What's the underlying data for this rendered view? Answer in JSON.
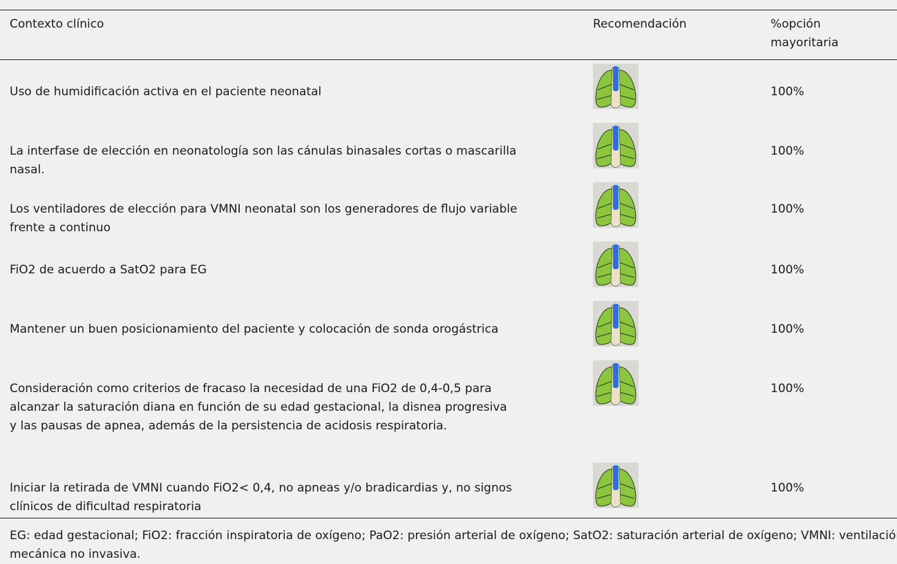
{
  "table": {
    "header": [
      "Contexto clínico",
      "Recomendación",
      "%opción mayoritaria"
    ],
    "rows": [
      [
        "Uso de humidificación activa en el paciente neonatal",
        "100%"
      ],
      [
        "La interfase de elección en neonatología son las cánulas binasales cortas o mascarilla nasal.",
        "100%"
      ],
      [
        "Los ventiladores de elección para VMNI neonatal son los generadores de flujo variable frente a continuo",
        "100%"
      ],
      [
        "FiO2 de acuerdo a SatO2 para EG",
        "100%"
      ],
      [
        "Mantener un buen posicionamiento del paciente y colocación de sonda orogástrica",
        "100%"
      ],
      [
        "Consideración como criterios de fracaso la necesidad de una FiO2 de 0,4-0,5 para alcanzar la saturación diana en función de su edad gestacional, la disnea progresiva y las pausas de apnea, además de la persistencia de acidosis respiratoria.",
        "100%"
      ],
      [
        "Iniciar la retirada de VMNI cuando FiO2< 0,4, no apneas y/o bradicardias y, no signos clínicos de dificultad respiratoria",
        "100%"
      ]
    ],
    "footnote": "EG: edad gestacional; FiO2: fracción inspiratoria de oxígeno; PaO2: presión arterial de oxígeno; SatO2: saturación arterial de oxígeno; VMNI: ventilación mecánica no invasiva."
  }
}
